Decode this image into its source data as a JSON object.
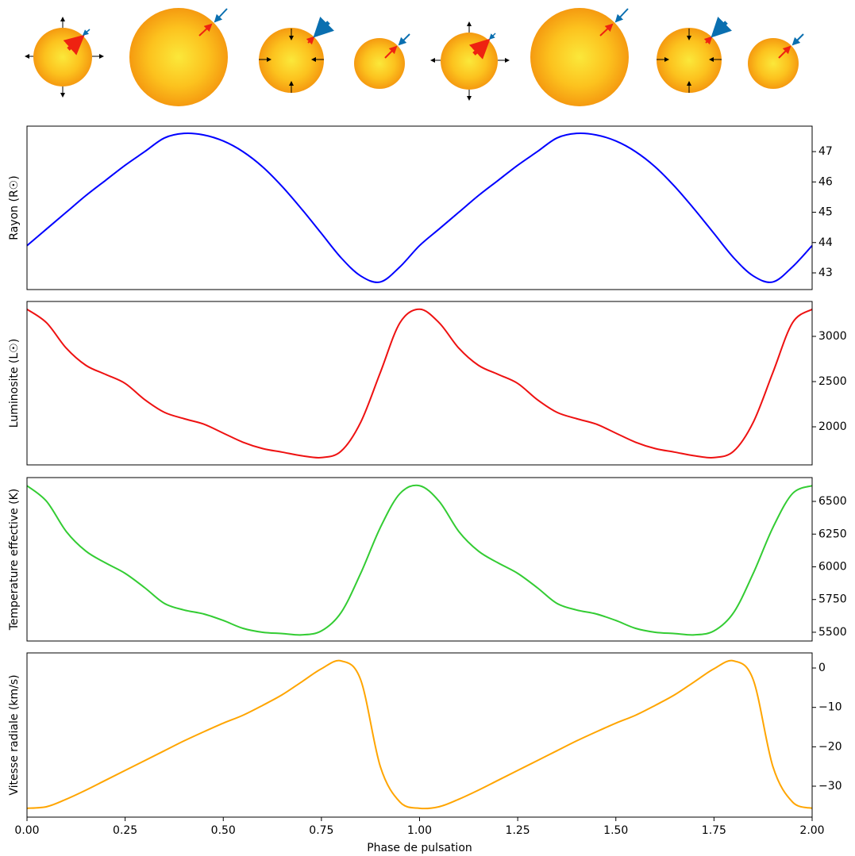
{
  "chart_data": [
    {
      "type": "line",
      "ylabel": "Rayon (R☉)",
      "color": "#0000ff",
      "x": [
        0,
        0.05,
        0.1,
        0.15,
        0.2,
        0.25,
        0.3,
        0.35,
        0.4,
        0.45,
        0.5,
        0.55,
        0.6,
        0.65,
        0.7,
        0.75,
        0.8,
        0.85,
        0.9,
        0.95,
        1,
        1.05,
        1.1,
        1.15,
        1.2,
        1.25,
        1.3,
        1.35,
        1.4,
        1.45,
        1.5,
        1.55,
        1.6,
        1.65,
        1.7,
        1.75,
        1.8,
        1.85,
        1.9,
        1.95,
        2
      ],
      "values": [
        43.9,
        44.45,
        45.0,
        45.55,
        46.05,
        46.55,
        47.0,
        47.45,
        47.6,
        47.55,
        47.35,
        47.0,
        46.5,
        45.85,
        45.1,
        44.3,
        43.5,
        42.9,
        42.7,
        43.2,
        43.9,
        44.45,
        45.0,
        45.55,
        46.05,
        46.55,
        47.0,
        47.45,
        47.6,
        47.55,
        47.35,
        47.0,
        46.5,
        45.85,
        45.1,
        44.3,
        43.5,
        42.9,
        42.7,
        43.2,
        43.9
      ],
      "xlim": [
        0,
        2
      ],
      "ylim": [
        42.45,
        47.84
      ],
      "yticks": [
        43,
        44,
        45,
        46,
        47
      ]
    },
    {
      "type": "line",
      "ylabel": "Luminosite (L☉)",
      "color": "#ee1111",
      "x": [
        0,
        0.05,
        0.1,
        0.15,
        0.2,
        0.25,
        0.3,
        0.35,
        0.4,
        0.45,
        0.5,
        0.55,
        0.6,
        0.65,
        0.7,
        0.75,
        0.8,
        0.85,
        0.9,
        0.95,
        1,
        1.05,
        1.1,
        1.15,
        1.2,
        1.25,
        1.3,
        1.35,
        1.4,
        1.45,
        1.5,
        1.55,
        1.6,
        1.65,
        1.7,
        1.75,
        1.8,
        1.85,
        1.9,
        1.95,
        2
      ],
      "values": [
        3300,
        3150,
        2870,
        2680,
        2580,
        2480,
        2300,
        2160,
        2090,
        2030,
        1930,
        1830,
        1760,
        1720,
        1680,
        1660,
        1730,
        2050,
        2600,
        3150,
        3300,
        3150,
        2870,
        2680,
        2580,
        2480,
        2300,
        2160,
        2090,
        2030,
        1930,
        1830,
        1760,
        1720,
        1680,
        1660,
        1730,
        2050,
        2600,
        3150,
        3300
      ],
      "xlim": [
        0,
        2
      ],
      "ylim": [
        1579,
        3386
      ],
      "yticks": [
        2000,
        2500,
        3000
      ]
    },
    {
      "type": "line",
      "ylabel": "Temperature effective (K)",
      "color": "#33cc33",
      "x": [
        0,
        0.05,
        0.1,
        0.15,
        0.2,
        0.25,
        0.3,
        0.35,
        0.4,
        0.45,
        0.5,
        0.55,
        0.6,
        0.65,
        0.7,
        0.75,
        0.8,
        0.85,
        0.9,
        0.95,
        1,
        1.05,
        1.1,
        1.15,
        1.2,
        1.25,
        1.3,
        1.35,
        1.4,
        1.45,
        1.5,
        1.55,
        1.6,
        1.65,
        1.7,
        1.75,
        1.8,
        1.85,
        1.9,
        1.95,
        2
      ],
      "values": [
        6620,
        6500,
        6270,
        6120,
        6030,
        5950,
        5840,
        5720,
        5670,
        5640,
        5590,
        5530,
        5500,
        5490,
        5480,
        5510,
        5650,
        5950,
        6300,
        6560,
        6620,
        6500,
        6270,
        6120,
        6030,
        5950,
        5840,
        5720,
        5670,
        5640,
        5590,
        5530,
        5500,
        5490,
        5480,
        5510,
        5650,
        5950,
        6300,
        6560,
        6620
      ],
      "xlim": [
        0,
        2
      ],
      "ylim": [
        5433,
        6682
      ],
      "yticks": [
        5500,
        5750,
        6000,
        6250,
        6500
      ]
    },
    {
      "type": "line",
      "ylabel": "Vitesse radiale (km/s)",
      "xlabel": "Phase de pulsation",
      "color": "#ffa500",
      "x": [
        0,
        0.05,
        0.1,
        0.15,
        0.2,
        0.25,
        0.3,
        0.35,
        0.4,
        0.45,
        0.5,
        0.55,
        0.6,
        0.65,
        0.7,
        0.75,
        0.8,
        0.85,
        0.9,
        0.95,
        1,
        1.05,
        1.1,
        1.15,
        1.2,
        1.25,
        1.3,
        1.35,
        1.4,
        1.45,
        1.5,
        1.55,
        1.6,
        1.65,
        1.7,
        1.75,
        1.8,
        1.85,
        1.9,
        1.95,
        2
      ],
      "values": [
        -35.6,
        -35.2,
        -33.3,
        -31,
        -28.5,
        -26,
        -23.5,
        -21,
        -18.5,
        -16.2,
        -14,
        -12,
        -9.5,
        -6.8,
        -3.5,
        -0.2,
        1.8,
        -3,
        -25,
        -34,
        -35.6,
        -35.2,
        -33.3,
        -31,
        -28.5,
        -26,
        -23.5,
        -21,
        -18.5,
        -16.2,
        -14,
        -12,
        -9.5,
        -6.8,
        -3.5,
        -0.2,
        1.8,
        -3,
        -25,
        -34,
        -35.6
      ],
      "xlim": [
        0,
        2
      ],
      "ylim": [
        -37.85,
        3.83
      ],
      "yticks": [
        {
          "value": -30,
          "label": "−30"
        },
        {
          "value": -20,
          "label": "−20"
        },
        {
          "value": -10,
          "label": "−10"
        },
        0
      ],
      "xticks": [
        {
          "value": 0,
          "label": "0.00"
        },
        {
          "value": 0.25,
          "label": "0.25"
        },
        {
          "value": 0.5,
          "label": "0.50"
        },
        {
          "value": 0.75,
          "label": "0.75"
        },
        {
          "value": 1,
          "label": "1.00"
        },
        {
          "value": 1.25,
          "label": "1.25"
        },
        {
          "value": 1.5,
          "label": "1.50"
        },
        {
          "value": 1.75,
          "label": "1.75"
        },
        {
          "value": 2,
          "label": "2.00"
        }
      ]
    }
  ]
}
